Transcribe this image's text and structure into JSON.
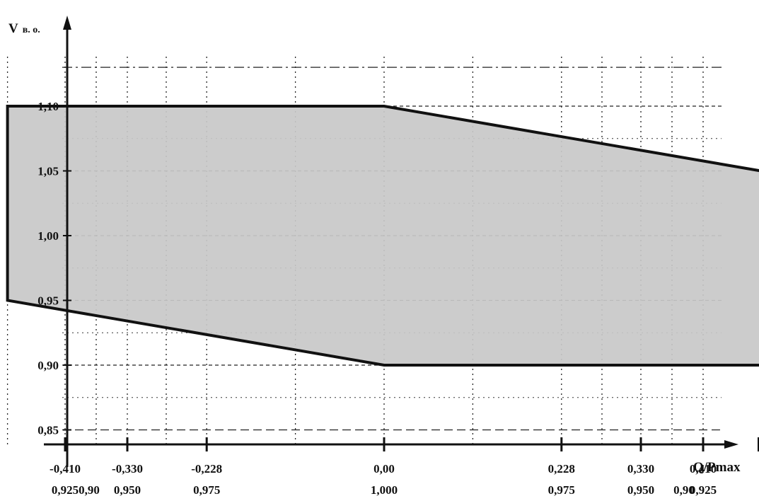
{
  "chart_data": {
    "type": "area",
    "ylabel_main": "V",
    "ylabel_sub": "в. о.",
    "xlabel": "Q/Pmax",
    "ylim": [
      0.84,
      1.16
    ],
    "y_ticks": [
      {
        "value": 0.85,
        "label": "0,85"
      },
      {
        "value": 0.9,
        "label": "0,90"
      },
      {
        "value": 0.95,
        "label": "0,95"
      },
      {
        "value": 1.0,
        "label": "1,00"
      },
      {
        "value": 1.05,
        "label": "1,05"
      },
      {
        "value": 1.1,
        "label": "1,10"
      }
    ],
    "extra_dashed_y": [
      1.13
    ],
    "x_ticks": [
      {
        "value": -0.41,
        "label": "-0,410",
        "pf": "0,925"
      },
      {
        "value": -0.33,
        "label": "-0,330",
        "pf": "0,950"
      },
      {
        "value": -0.228,
        "label": "-0,228",
        "pf": "0,975"
      },
      {
        "value": 0.0,
        "label": "0,00",
        "pf": "1,000"
      },
      {
        "value": 0.228,
        "label": "0,228",
        "pf": "0,975"
      },
      {
        "value": 0.33,
        "label": "0,330",
        "pf": "0,950"
      },
      {
        "value": 0.41,
        "label": "0,410",
        "pf": "0,925"
      }
    ],
    "x_end_pf": [
      {
        "value": -0.484,
        "label": "0,90"
      },
      {
        "value": 0.484,
        "label": "0,90"
      }
    ],
    "region": {
      "fill": "#c8c8c8",
      "points": [
        {
          "x": -0.484,
          "y": 1.1
        },
        {
          "x": 0.0,
          "y": 1.1
        },
        {
          "x": 0.484,
          "y": 1.05
        },
        {
          "x": 0.484,
          "y": 0.9
        },
        {
          "x": 0.0,
          "y": 0.9
        },
        {
          "x": -0.484,
          "y": 0.95
        }
      ]
    },
    "grid": true
  }
}
